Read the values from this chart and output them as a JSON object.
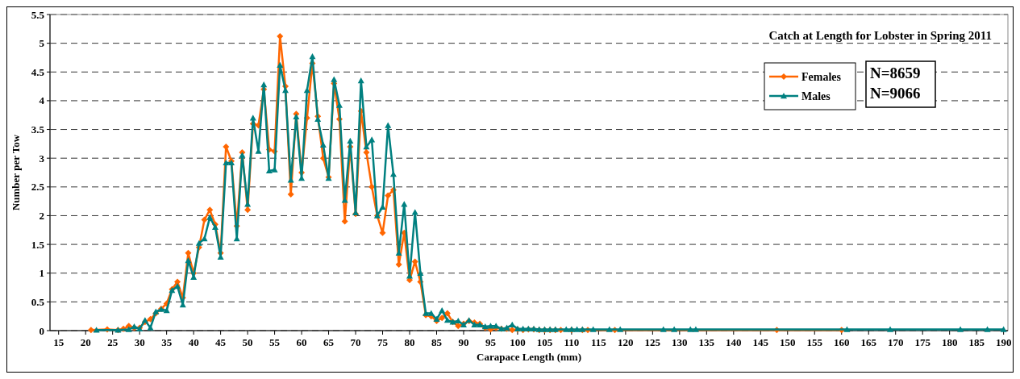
{
  "chart_data": {
    "type": "line",
    "title": "Catch at Length for Lobster in Spring 2011",
    "xlabel": "Carapace Length (mm)",
    "ylabel": "Number per Tow",
    "xlim": [
      13.4,
      190.8
    ],
    "ylim": [
      0,
      5.5
    ],
    "xticks": [
      15,
      20,
      25,
      30,
      35,
      40,
      45,
      50,
      55,
      60,
      65,
      70,
      75,
      80,
      85,
      90,
      95,
      100,
      105,
      110,
      115,
      120,
      125,
      130,
      135,
      140,
      145,
      150,
      155,
      160,
      165,
      170,
      175,
      180,
      185,
      190
    ],
    "yticks": [
      0,
      0.5,
      1,
      1.5,
      2,
      2.5,
      3,
      3.5,
      4,
      4.5,
      5,
      5.5
    ],
    "grid": "y",
    "legend": "top right",
    "annotations": [
      "N=8659",
      "N=9066"
    ],
    "series": [
      {
        "name": "Females",
        "color": "#ff6600",
        "marker": "diamond",
        "x": [
          21,
          24,
          26,
          27,
          28,
          29,
          30,
          31,
          32,
          33,
          34,
          35,
          36,
          37,
          38,
          39,
          40,
          41,
          42,
          43,
          44,
          45,
          46,
          47,
          48,
          49,
          50,
          51,
          52,
          53,
          54,
          55,
          56,
          57,
          58,
          59,
          60,
          61,
          62,
          63,
          64,
          65,
          66,
          67,
          68,
          69,
          70,
          71,
          72,
          73,
          74,
          75,
          76,
          77,
          78,
          79,
          80,
          81,
          82,
          83,
          84,
          85,
          86,
          87,
          88,
          89,
          90,
          91,
          92,
          93,
          94,
          95,
          96,
          97,
          98,
          99,
          100,
          101,
          102,
          103,
          104,
          105,
          106,
          107,
          108,
          110,
          112,
          113,
          118,
          148,
          160
        ],
        "values": [
          0.01,
          0.02,
          0.01,
          0.03,
          0.08,
          0.05,
          0.05,
          0.15,
          0.2,
          0.3,
          0.38,
          0.47,
          0.72,
          0.85,
          0.57,
          1.35,
          1.0,
          1.45,
          1.93,
          2.1,
          1.85,
          1.35,
          3.2,
          2.95,
          1.82,
          3.1,
          2.1,
          3.6,
          3.57,
          4.2,
          3.15,
          3.12,
          5.12,
          4.25,
          2.37,
          3.77,
          2.75,
          3.7,
          4.65,
          3.73,
          3.0,
          2.67,
          4.3,
          3.68,
          1.9,
          3.2,
          2.03,
          3.82,
          3.1,
          2.5,
          2.0,
          1.7,
          2.35,
          2.45,
          1.15,
          1.7,
          0.88,
          1.2,
          0.85,
          0.27,
          0.25,
          0.17,
          0.22,
          0.3,
          0.15,
          0.08,
          0.12,
          0.17,
          0.14,
          0.12,
          0.05,
          0.02,
          0.05,
          0.03,
          0.03,
          0.01,
          0.02,
          0.01,
          0.02,
          0.02,
          0.01,
          0.01,
          0.01,
          0.01,
          0.01,
          0.01,
          0.01,
          0.01,
          0.01,
          0.01,
          0.01
        ]
      },
      {
        "name": "Males",
        "color": "#008080",
        "marker": "triangle",
        "x": [
          22,
          26,
          28,
          29,
          30,
          31,
          32,
          33,
          34,
          35,
          36,
          37,
          38,
          39,
          40,
          41,
          42,
          43,
          44,
          45,
          46,
          47,
          48,
          49,
          50,
          51,
          52,
          53,
          54,
          55,
          56,
          57,
          58,
          59,
          60,
          61,
          62,
          63,
          64,
          65,
          66,
          67,
          68,
          69,
          70,
          71,
          72,
          73,
          74,
          75,
          76,
          77,
          78,
          79,
          80,
          81,
          82,
          83,
          84,
          85,
          86,
          87,
          88,
          89,
          90,
          91,
          92,
          93,
          94,
          95,
          96,
          97,
          98,
          99,
          100,
          101,
          102,
          103,
          104,
          105,
          106,
          107,
          109,
          110,
          111,
          112,
          114,
          117,
          119,
          127,
          129,
          132,
          133,
          161,
          169,
          182,
          187,
          190
        ],
        "values": [
          0.01,
          0.01,
          0.02,
          0.07,
          0.03,
          0.18,
          0.05,
          0.33,
          0.37,
          0.35,
          0.7,
          0.77,
          0.45,
          1.22,
          0.93,
          1.52,
          1.6,
          1.97,
          1.8,
          1.28,
          2.92,
          2.92,
          1.6,
          3.05,
          2.2,
          3.7,
          3.12,
          4.28,
          2.78,
          2.8,
          4.62,
          4.18,
          2.62,
          3.72,
          2.65,
          4.18,
          4.77,
          3.68,
          3.23,
          2.65,
          4.37,
          3.92,
          2.27,
          3.3,
          2.05,
          4.35,
          3.2,
          3.32,
          2.0,
          2.15,
          3.57,
          2.72,
          1.35,
          2.2,
          0.95,
          2.06,
          1.0,
          0.3,
          0.3,
          0.2,
          0.35,
          0.18,
          0.15,
          0.17,
          0.1,
          0.18,
          0.1,
          0.1,
          0.07,
          0.08,
          0.08,
          0.03,
          0.05,
          0.1,
          0.03,
          0.03,
          0.03,
          0.03,
          0.02,
          0.02,
          0.02,
          0.02,
          0.02,
          0.02,
          0.02,
          0.02,
          0.02,
          0.02,
          0.02,
          0.02,
          0.02,
          0.02,
          0.02,
          0.02,
          0.02,
          0.02,
          0.02,
          0.02
        ]
      }
    ]
  }
}
